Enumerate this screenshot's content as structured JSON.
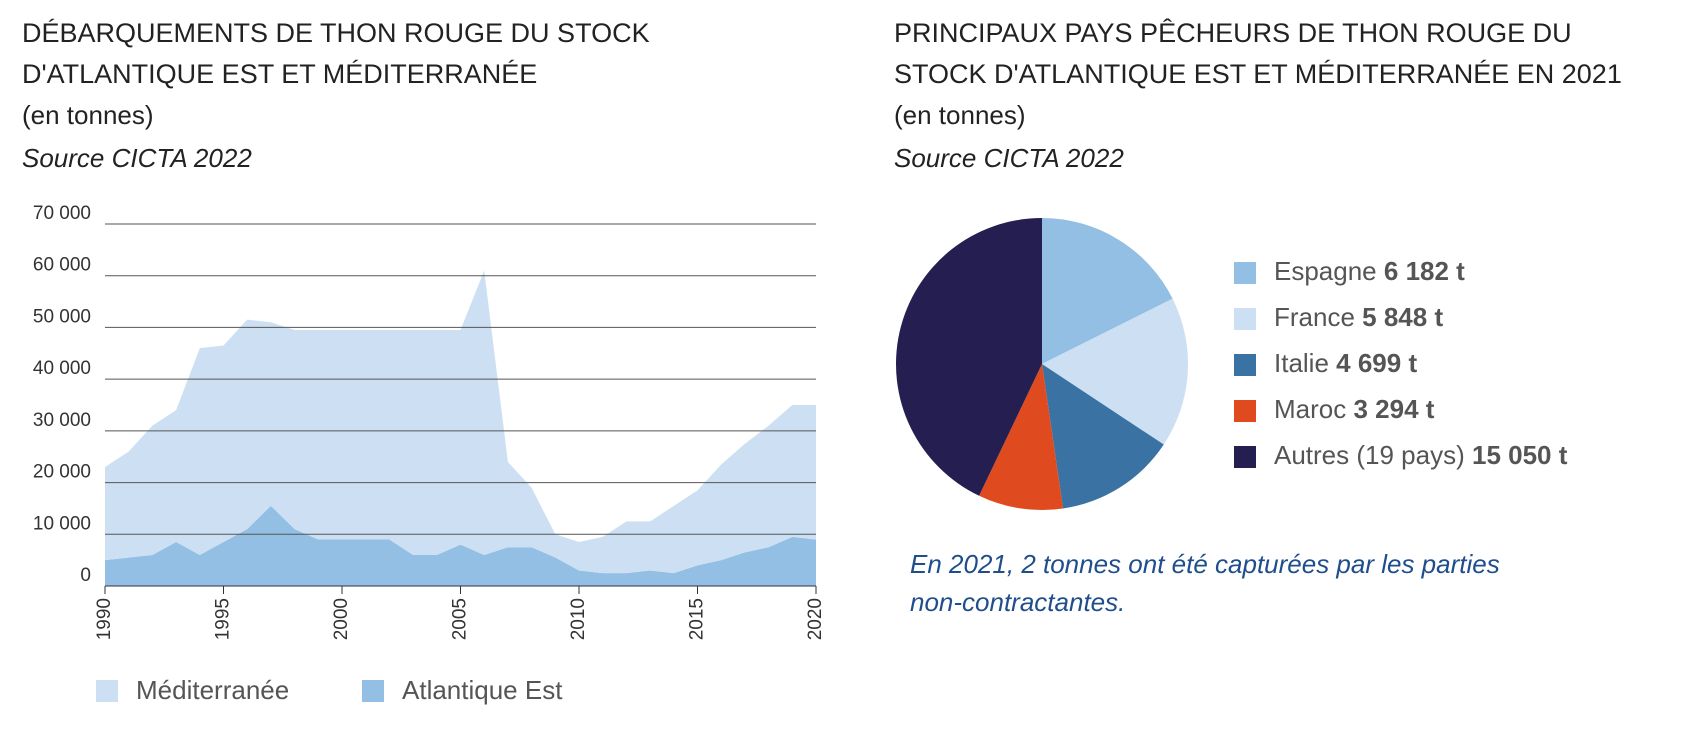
{
  "chart_data": [
    {
      "type": "area",
      "title": [
        "DÉBARQUEMENTS DE THON ROUGE DU STOCK",
        "D'ATLANTIQUE EST ET MÉDITERRANÉE"
      ],
      "subtitle": "(en tonnes)",
      "source": "Source CICTA 2022",
      "stacked": true,
      "x": [
        1990,
        1991,
        1992,
        1993,
        1994,
        1995,
        1996,
        1997,
        1998,
        1999,
        2000,
        2001,
        2002,
        2003,
        2004,
        2005,
        2006,
        2007,
        2008,
        2009,
        2010,
        2011,
        2012,
        2013,
        2014,
        2015,
        2016,
        2017,
        2018,
        2019,
        2020
      ],
      "series": [
        {
          "name": "Méditerranée",
          "color": "#cde0f3",
          "values": [
            18000,
            20500,
            25000,
            25500,
            40000,
            38000,
            40500,
            35500,
            38500,
            40500,
            40500,
            40500,
            40500,
            43500,
            43500,
            41500,
            55000,
            16500,
            11500,
            4500,
            5500,
            7000,
            10000,
            9500,
            13000,
            14500,
            18500,
            21000,
            23500,
            25500,
            26000
          ]
        },
        {
          "name": "Atlantique Est",
          "color": "#92bfe3",
          "values": [
            5000,
            5500,
            6000,
            8500,
            6000,
            8500,
            11000,
            15500,
            11000,
            9000,
            9000,
            9000,
            9000,
            6000,
            6000,
            8000,
            6000,
            7500,
            7500,
            5500,
            3000,
            2500,
            2500,
            3000,
            2500,
            4000,
            5000,
            6500,
            7500,
            9500,
            9000
          ]
        }
      ],
      "xlim": [
        1990,
        2020
      ],
      "xticks": [
        1990,
        1995,
        2000,
        2005,
        2010,
        2015,
        2020
      ],
      "ylim": [
        0,
        70000
      ],
      "yticks": [
        0,
        {
          "value": 10000,
          "label": "10 000"
        },
        {
          "value": 20000,
          "label": "20 000"
        },
        {
          "value": 30000,
          "label": "30 000"
        },
        {
          "value": 40000,
          "label": "40 000"
        },
        {
          "value": 50000,
          "label": "50 000"
        },
        {
          "value": 60000,
          "label": "60 000"
        },
        {
          "value": 70000,
          "label": "70 000"
        }
      ],
      "grid": true,
      "legend": "bottom"
    },
    {
      "type": "pie",
      "title": [
        "PRINCIPAUX PAYS PÊCHEURS DE THON ROUGE DU",
        "STOCK D'ATLANTIQUE EST ET MÉDITERRANÉE EN 2021"
      ],
      "subtitle": "(en tonnes)",
      "source": "Source CICTA 2022",
      "categories": [
        "Espagne",
        "France",
        "Italie",
        "Maroc",
        "Autres (19 pays)"
      ],
      "values": [
        6182,
        5848,
        4699,
        3294,
        15050
      ],
      "value_labels": [
        "6 182 t",
        "5 848 t",
        "4 699 t",
        "3 294 t",
        "15 050 t"
      ],
      "colors": [
        "#92bfe3",
        "#cde0f3",
        "#3a72a3",
        "#e04a1f",
        "#241f50"
      ],
      "legend": "right",
      "note": [
        "En 2021, 2 tonnes ont été capturées par les parties",
        "non-contractantes."
      ]
    }
  ]
}
